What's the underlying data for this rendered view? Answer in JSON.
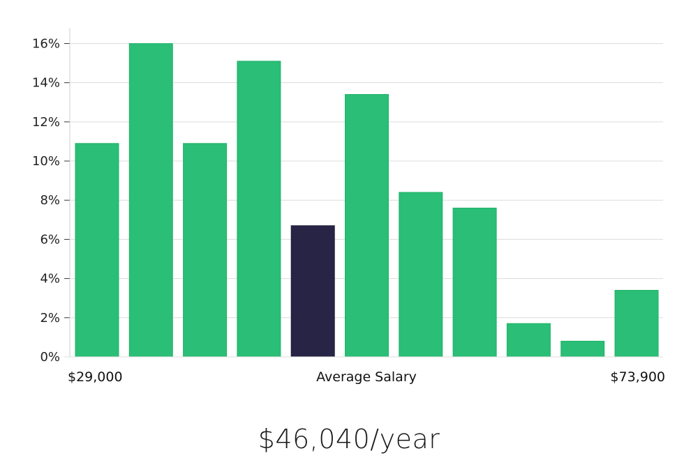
{
  "chart_data": {
    "type": "bar",
    "title": "",
    "xlabel": "Average Salary",
    "ylabel": "",
    "x_min_label": "$29,000",
    "x_max_label": "$73,900",
    "ylim": [
      0,
      16.8
    ],
    "y_ticks": [
      0,
      2,
      4,
      6,
      8,
      10,
      12,
      14,
      16
    ],
    "y_tick_labels": [
      "0%",
      "2%",
      "4%",
      "6%",
      "8%",
      "10%",
      "12%",
      "14%",
      "16%"
    ],
    "grid": true,
    "values": [
      10.9,
      16.0,
      10.9,
      15.1,
      6.7,
      13.4,
      8.4,
      7.6,
      1.7,
      0.8,
      3.4
    ],
    "highlight_index": 4,
    "colors": {
      "bar": "#2abe76",
      "bar_edge": "#22b36b",
      "highlight": "#272445",
      "grid": "#dcdcdc",
      "axis": "#cfcfcf"
    }
  },
  "summary": {
    "average_salary_label": "$46,040/year"
  }
}
